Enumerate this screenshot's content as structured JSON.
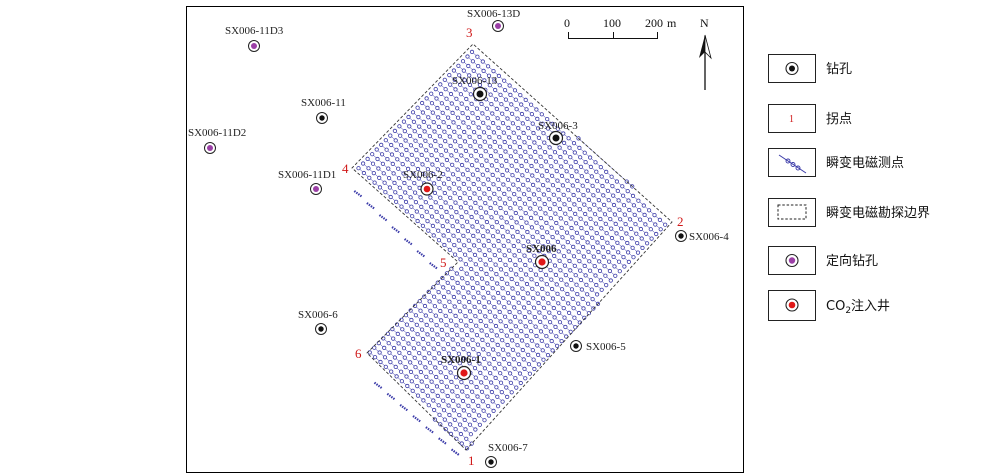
{
  "scale_bar": {
    "ticks": [
      "0",
      "100",
      "200"
    ],
    "unit": "m"
  },
  "north_label": "N",
  "boundary_points": [
    {
      "label": "1"
    },
    {
      "label": "2"
    },
    {
      "label": "3"
    },
    {
      "label": "4"
    },
    {
      "label": "5"
    },
    {
      "label": "6"
    }
  ],
  "wells": [
    {
      "label": "SX006-11D3",
      "kind": "directional"
    },
    {
      "label": "SX006-13D",
      "kind": "directional"
    },
    {
      "label": "SX006-11D2",
      "kind": "directional"
    },
    {
      "label": "SX006-11D1",
      "kind": "directional"
    },
    {
      "label": "SX006-11",
      "kind": "borehole"
    },
    {
      "label": "SX006-13",
      "kind": "borehole"
    },
    {
      "label": "SX006-3",
      "kind": "borehole"
    },
    {
      "label": "SX006-4",
      "kind": "borehole"
    },
    {
      "label": "SX006-6",
      "kind": "borehole"
    },
    {
      "label": "SX006-5",
      "kind": "borehole"
    },
    {
      "label": "SX006-7",
      "kind": "borehole"
    },
    {
      "label": "SX006-2",
      "kind": "co2"
    },
    {
      "label": "SX006",
      "kind": "co2"
    },
    {
      "label": "SX006-1",
      "kind": "co2"
    }
  ],
  "legend": [
    {
      "symbol": "borehole",
      "label": "钻孔"
    },
    {
      "symbol": "inflection",
      "label": "拐点",
      "marker": "1"
    },
    {
      "symbol": "tem-point",
      "label": "瞬变电磁测点"
    },
    {
      "symbol": "boundary",
      "label": "瞬变电磁勘探边界"
    },
    {
      "symbol": "directional",
      "label": "定向钻孔"
    },
    {
      "symbol": "co2",
      "label": "CO",
      "sub": "2",
      "suffix": "注入井"
    }
  ],
  "colors": {
    "borehole_dot": "#111111",
    "directional_dot": "#9b3fa6",
    "co2_dot": "#e01818",
    "survey_point": "#3a3aa8",
    "point_label": "#d01818"
  }
}
